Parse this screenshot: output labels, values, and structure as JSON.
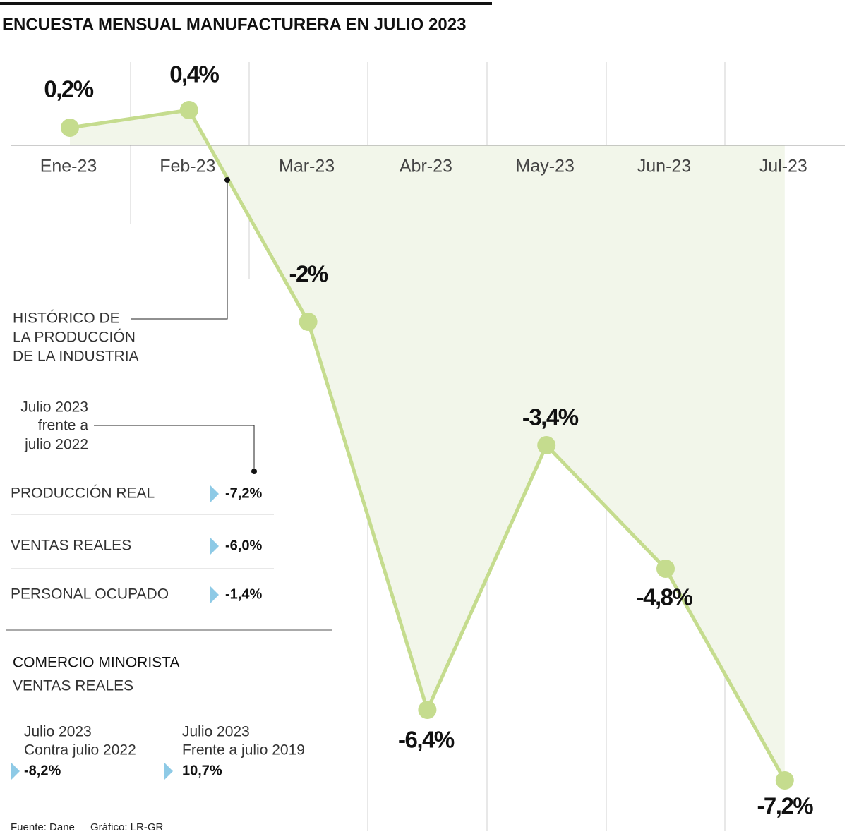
{
  "chart_data": {
    "type": "line",
    "title": "ENCUESTA MENSUAL MANUFACTURERA EN JULIO 2023",
    "categories": [
      "Ene-23",
      "Feb-23",
      "Mar-23",
      "Abr-23",
      "May-23",
      "Jun-23",
      "Jul-23"
    ],
    "values": [
      0.2,
      0.4,
      -2,
      -6.4,
      -3.4,
      -4.8,
      -7.2
    ],
    "value_labels": [
      "0,2%",
      "0,4%",
      "-2%",
      "-6,4%",
      "-3,4%",
      "-4,8%",
      "-7,2%"
    ],
    "color": "#c5dc8e"
  },
  "annotation": {
    "lines": [
      "HISTÓRICO DE",
      "LA PRODUCCIÓN",
      "DE LA INDUSTRIA"
    ]
  },
  "panel": {
    "period_lines": [
      "Julio 2023",
      "frente a",
      "julio 2022"
    ],
    "rows": [
      {
        "label": "PRODUCCIÓN REAL",
        "value": "-7,2%"
      },
      {
        "label": "VENTAS REALES",
        "value": "-6,0%"
      },
      {
        "label": "PERSONAL OCUPADO",
        "value": "-1,4%"
      }
    ]
  },
  "retail": {
    "title": "COMERCIO MINORISTA",
    "subtitle": "VENTAS REALES",
    "columns": [
      {
        "lines": [
          "Julio 2023",
          "Contra julio 2022"
        ],
        "value": "-8,2%"
      },
      {
        "lines": [
          "Julio 2023",
          "Frente a julio 2019"
        ],
        "value": "10,7%"
      }
    ]
  },
  "footer": {
    "source": "Fuente: Dane",
    "credit": "Gráfico: LR-GR"
  }
}
